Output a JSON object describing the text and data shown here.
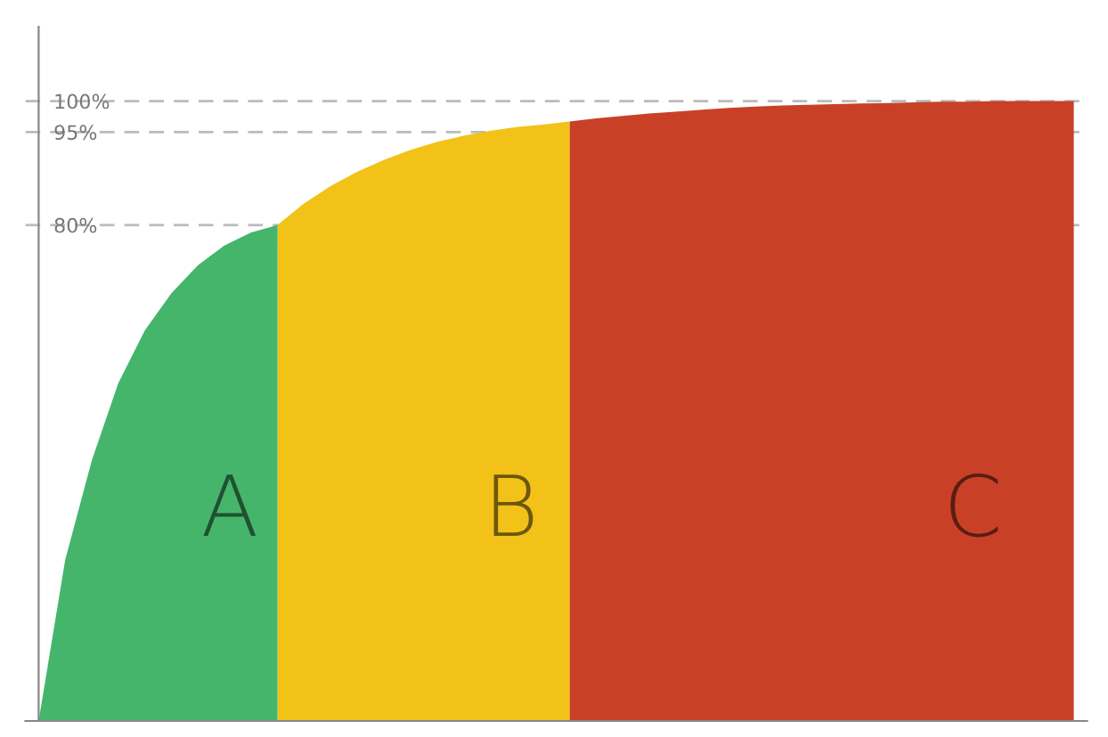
{
  "chart_data": {
    "type": "area",
    "categories": [
      null,
      null,
      null,
      null,
      null,
      null,
      null,
      null,
      null,
      null,
      null,
      null,
      null,
      null,
      null,
      null,
      null,
      null,
      null,
      null,
      null,
      null,
      null,
      null,
      null,
      null,
      null,
      null,
      null,
      null,
      null,
      null,
      null,
      null,
      null,
      null,
      null,
      null,
      null,
      null
    ],
    "series": [
      {
        "name": "A",
        "color": "#45b56b",
        "values": [
          0,
          26,
          42,
          54.5,
          63,
          69,
          73.5,
          76.7,
          78.8,
          80,
          null,
          null,
          null,
          null,
          null,
          null,
          null,
          null,
          null,
          null,
          null,
          null,
          null,
          null,
          null,
          null,
          null,
          null,
          null,
          null,
          null,
          null,
          null,
          null,
          null,
          null,
          null,
          null,
          null,
          null
        ]
      },
      {
        "name": "B",
        "color": "#f2c218",
        "values": [
          null,
          null,
          null,
          null,
          null,
          null,
          null,
          null,
          null,
          80,
          83.5,
          86.3,
          88.6,
          90.5,
          92.1,
          93.4,
          94.4,
          95.2,
          95.8,
          96.2,
          96.7,
          null,
          null,
          null,
          null,
          null,
          null,
          null,
          null,
          null,
          null,
          null,
          null,
          null,
          null,
          null,
          null,
          null,
          null,
          null
        ]
      },
      {
        "name": "C",
        "color": "#c84127",
        "values": [
          null,
          null,
          null,
          null,
          null,
          null,
          null,
          null,
          null,
          null,
          null,
          null,
          null,
          null,
          null,
          null,
          null,
          null,
          null,
          null,
          96.7,
          97.2,
          97.6,
          98,
          98.3,
          98.6,
          98.9,
          99.1,
          99.3,
          99.4,
          99.5,
          99.6,
          99.7,
          99.8,
          99.9,
          99.9,
          100,
          100,
          100,
          100
        ]
      }
    ],
    "ylim": [
      0,
      112
    ],
    "yticks": [
      {
        "value": 80,
        "label": "80%"
      },
      {
        "value": 95,
        "label": "95%"
      },
      {
        "value": 100,
        "label": "100%"
      }
    ],
    "tick_labels": "y",
    "grid": false,
    "legend": false,
    "ref_lines": [
      {
        "axis": "y",
        "value": 80,
        "color": "#bbbbbb",
        "line_style": "dashed"
      },
      {
        "axis": "y",
        "value": 95,
        "color": "#bbbbbb",
        "line_style": "dashed"
      },
      {
        "axis": "y",
        "value": 100,
        "color": "#bbbbbb",
        "line_style": "dashed"
      }
    ]
  }
}
